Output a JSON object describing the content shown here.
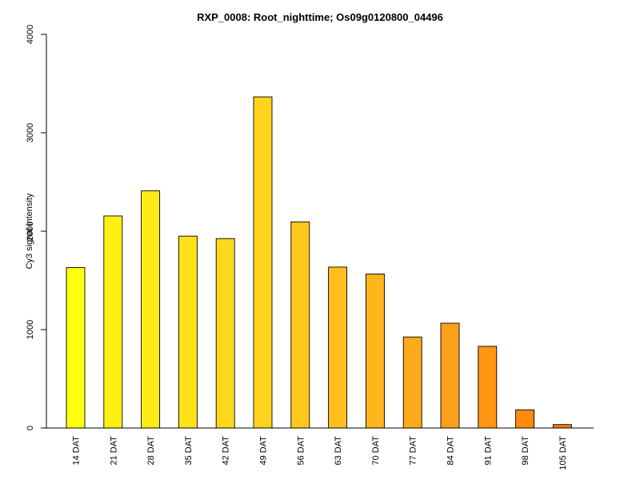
{
  "chart_data": {
    "type": "bar",
    "title": "RXP_0008: Root_nighttime; Os09g0120800_04496",
    "xlabel": "",
    "ylabel": "Cy3 signal intensity",
    "ylim": [
      0,
      4000
    ],
    "yticks": [
      0,
      1000,
      2000,
      3000,
      4000
    ],
    "grid": false,
    "categories": [
      "14 DAT",
      "21 DAT",
      "28 DAT",
      "35 DAT",
      "42 DAT",
      "49 DAT",
      "56 DAT",
      "63 DAT",
      "70 DAT",
      "77 DAT",
      "84 DAT",
      "91 DAT",
      "98 DAT",
      "105 DAT"
    ],
    "values": [
      1630,
      2155,
      2410,
      1950,
      1925,
      3365,
      2095,
      1635,
      1565,
      925,
      1065,
      830,
      185,
      35
    ],
    "colors": [
      "#FFFF10",
      "#FFF014",
      "#FFEB16",
      "#FFE219",
      "#FFD81B",
      "#FFD21E",
      "#FFC61D",
      "#FFBF1E",
      "#FFB51C",
      "#FFAA1C",
      "#FFA01B",
      "#FF9614",
      "#FF8A10",
      "#FF7E0C"
    ]
  }
}
